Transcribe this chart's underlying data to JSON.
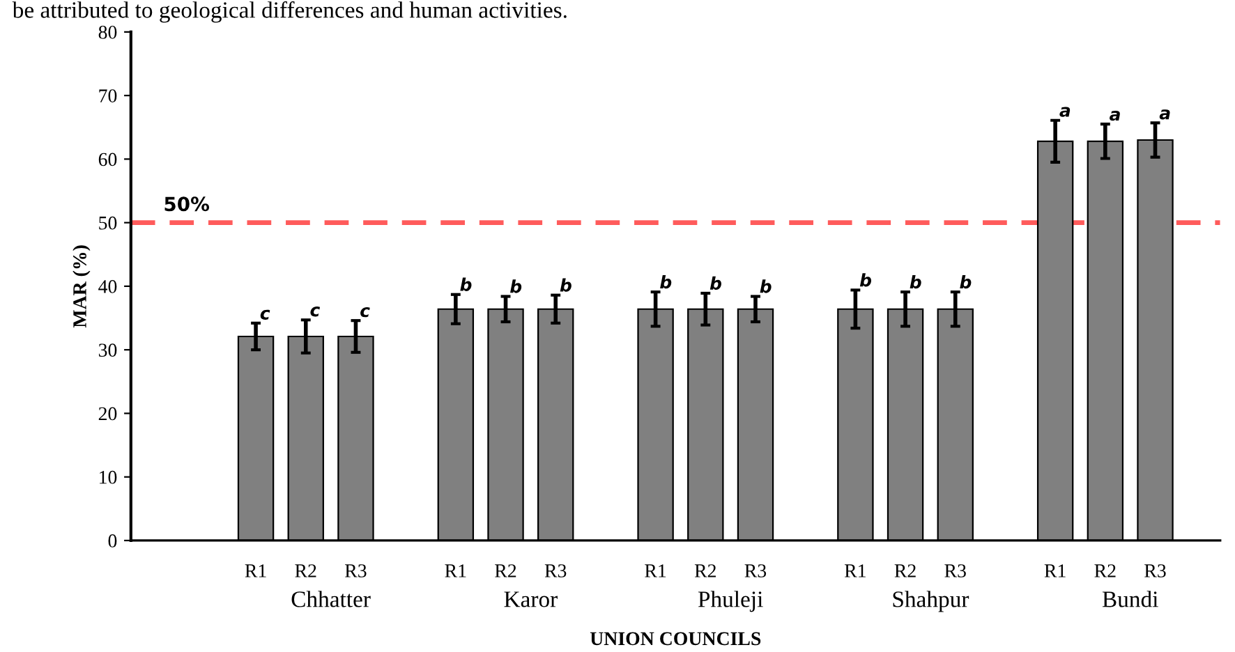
{
  "chart_data": {
    "type": "bar",
    "categories": [
      null,
      null,
      "R1",
      "R2",
      "R3",
      null,
      "R1",
      "R2",
      "R3",
      null,
      "R1",
      "R2",
      "R3",
      null,
      "R1",
      "R2",
      "R3",
      null,
      "R1",
      "R2",
      "R3"
    ],
    "values": [
      null,
      null,
      32.1,
      32.1,
      32.1,
      null,
      36.4,
      36.4,
      36.4,
      null,
      36.4,
      36.4,
      36.4,
      null,
      36.4,
      36.4,
      36.4,
      null,
      62.8,
      62.8,
      63.0
    ],
    "errors": [
      null,
      null,
      2.1,
      2.6,
      2.5,
      null,
      2.3,
      2.0,
      2.2,
      null,
      2.7,
      2.5,
      2.0,
      null,
      3.0,
      2.7,
      2.7,
      null,
      3.3,
      2.7,
      2.7
    ],
    "value_labels": [
      null,
      null,
      "c",
      "c",
      "c",
      null,
      "b",
      "b",
      "b",
      null,
      "b",
      "b",
      "b",
      null,
      "b",
      "b",
      "b",
      null,
      "a",
      "a",
      "a"
    ],
    "color": "#808080",
    "ylabel": "MAR (%)",
    "xlabel": "UNION COUNCILS",
    "ylim": [
      0,
      80
    ],
    "yticks": [
      0,
      10,
      20,
      30,
      40,
      50,
      60,
      70,
      80
    ],
    "ref_lines": [
      {
        "axis": "y",
        "value": 50,
        "label": "50%",
        "color": "#ff5b5b",
        "line_style": "dashed"
      }
    ],
    "annotations": [
      "Chhatter",
      "Karor",
      "Phuleji",
      "Shahpur",
      "Bundi",
      "be attributed to geological differences and human activities."
    ]
  }
}
